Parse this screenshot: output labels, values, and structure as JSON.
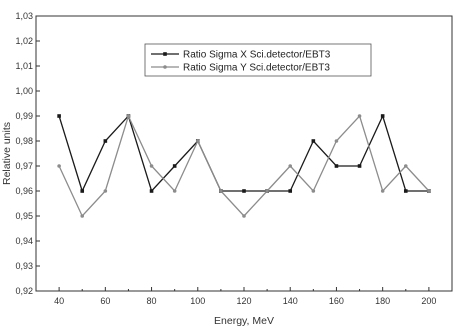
{
  "chart_data": {
    "type": "line",
    "title": "",
    "xlabel": "Energy, MeV",
    "ylabel": "Relative units",
    "x": [
      40,
      50,
      60,
      70,
      80,
      90,
      100,
      110,
      120,
      130,
      140,
      150,
      160,
      170,
      180,
      190,
      200
    ],
    "xlim": [
      30,
      210
    ],
    "ylim": [
      0.92,
      1.03
    ],
    "x_ticks": [
      "40",
      "60",
      "80",
      "100",
      "120",
      "140",
      "160",
      "180",
      "200"
    ],
    "y_ticks": [
      "0,92",
      "0,93",
      "0,94",
      "0,95",
      "0,96",
      "0,97",
      "0,98",
      "0,99",
      "1,00",
      "1,01",
      "1,02",
      "1,03"
    ],
    "grid": false,
    "legend_position": "top-center",
    "series": [
      {
        "name": "Ratio Sigma X Sci.detector/EBT3",
        "color": "#1a1a1a",
        "marker": "square",
        "values": [
          0.99,
          0.96,
          0.98,
          0.99,
          0.96,
          0.97,
          0.98,
          0.96,
          0.96,
          0.96,
          0.96,
          0.98,
          0.97,
          0.97,
          0.99,
          0.96,
          0.96
        ]
      },
      {
        "name": "Ratio Sigma Y Sci.detector/EBT3",
        "color": "#8c8c8c",
        "marker": "circle",
        "values": [
          0.97,
          0.95,
          0.96,
          0.99,
          0.97,
          0.96,
          0.98,
          0.96,
          0.95,
          0.96,
          0.97,
          0.96,
          0.98,
          0.99,
          0.96,
          0.97,
          0.96
        ]
      }
    ]
  }
}
